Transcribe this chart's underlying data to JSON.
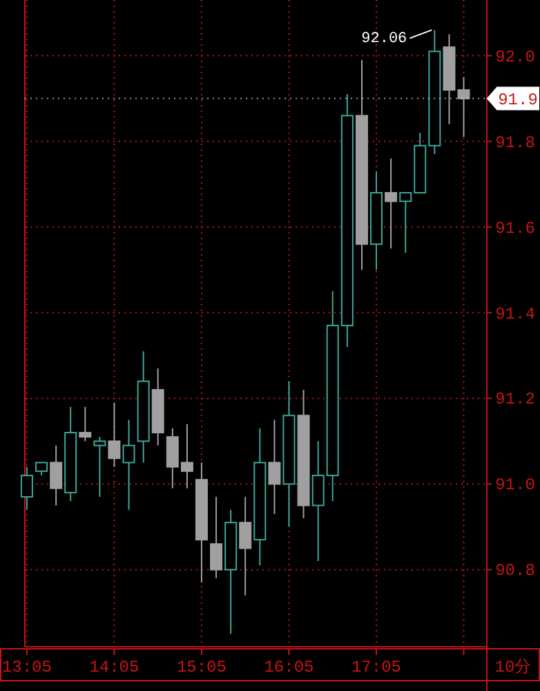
{
  "chart_data": {
    "type": "candlestick",
    "x": [
      13.083,
      13.25,
      13.417,
      13.583,
      13.75,
      13.917,
      14.083,
      14.25,
      14.417,
      14.583,
      14.75,
      14.917,
      15.083,
      15.25,
      15.417,
      15.583,
      15.75,
      15.917,
      16.083,
      16.25,
      16.417,
      16.583,
      16.75,
      16.917,
      17.083,
      17.25,
      17.417,
      17.583,
      17.75,
      17.917,
      18.083
    ],
    "ohlc": [
      [
        90.97,
        91.04,
        90.94,
        91.02
      ],
      [
        91.03,
        91.05,
        91.02,
        91.05
      ],
      [
        91.05,
        91.09,
        90.95,
        90.99
      ],
      [
        90.98,
        91.18,
        90.96,
        91.12
      ],
      [
        91.12,
        91.18,
        91.1,
        91.11
      ],
      [
        91.09,
        91.11,
        90.97,
        91.1
      ],
      [
        91.1,
        91.19,
        91.04,
        91.06
      ],
      [
        91.05,
        91.15,
        90.94,
        91.09
      ],
      [
        91.1,
        91.31,
        91.05,
        91.24
      ],
      [
        91.22,
        91.27,
        91.09,
        91.12
      ],
      [
        91.11,
        91.13,
        90.99,
        91.04
      ],
      [
        91.05,
        91.14,
        90.99,
        91.03
      ],
      [
        91.01,
        91.05,
        90.77,
        90.87
      ],
      [
        90.86,
        90.97,
        90.78,
        90.8
      ],
      [
        90.8,
        90.94,
        90.65,
        90.91
      ],
      [
        90.91,
        90.97,
        90.74,
        90.85
      ],
      [
        90.87,
        91.13,
        90.81,
        91.05
      ],
      [
        91.05,
        91.15,
        90.93,
        91.0
      ],
      [
        91.0,
        91.24,
        90.9,
        91.16
      ],
      [
        91.16,
        91.22,
        90.92,
        90.95
      ],
      [
        90.95,
        91.1,
        90.82,
        91.02
      ],
      [
        91.02,
        91.45,
        90.96,
        91.37
      ],
      [
        91.37,
        91.91,
        91.32,
        91.86
      ],
      [
        91.86,
        91.99,
        91.5,
        91.56
      ],
      [
        91.56,
        91.73,
        91.5,
        91.68
      ],
      [
        91.68,
        91.76,
        91.55,
        91.66
      ],
      [
        91.66,
        91.68,
        91.54,
        91.68
      ],
      [
        91.68,
        91.82,
        91.68,
        91.79
      ],
      [
        91.79,
        92.06,
        91.77,
        92.01
      ],
      [
        92.02,
        92.05,
        91.84,
        91.92
      ],
      [
        91.92,
        91.95,
        91.81,
        91.9
      ]
    ],
    "colors": [
      "#3aa89c",
      "#3aa89c",
      "#a0a0a0",
      "#3aa89c",
      "#a0a0a0",
      "#3aa89c",
      "#a0a0a0",
      "#3aa89c",
      "#3aa89c",
      "#a0a0a0",
      "#a0a0a0",
      "#a0a0a0",
      "#a0a0a0",
      "#a0a0a0",
      "#3aa89c",
      "#a0a0a0",
      "#3aa89c",
      "#a0a0a0",
      "#3aa89c",
      "#a0a0a0",
      "#3aa89c",
      "#3aa89c",
      "#3aa89c",
      "#a0a0a0",
      "#3aa89c",
      "#a0a0a0",
      "#3aa89c",
      "#3aa89c",
      "#3aa89c",
      "#a0a0a0",
      "#a0a0a0"
    ],
    "xlim": [
      13.06,
      18.34
    ],
    "xticks": [
      {
        "value": 13.083,
        "label": "13:05"
      },
      {
        "value": 14.083,
        "label": "14:05"
      },
      {
        "value": 15.083,
        "label": "15:05"
      },
      {
        "value": 16.083,
        "label": "16:05"
      },
      {
        "value": 17.083,
        "label": "17:05"
      },
      {
        "value": 18.083,
        "label": null
      }
    ],
    "ylim": [
      90.62,
      92.13
    ],
    "yticks": [
      {
        "value": 90.8,
        "label": "90.8"
      },
      {
        "value": 91.0,
        "label": "91.0"
      },
      {
        "value": 91.2,
        "label": "91.2"
      },
      {
        "value": 91.4,
        "label": "91.4"
      },
      {
        "value": 91.6,
        "label": "91.6"
      },
      {
        "value": 91.8,
        "label": "91.8"
      },
      {
        "value": 92.0,
        "label": "92.0"
      }
    ],
    "grid": true,
    "ref_lines": [
      {
        "axis": "y",
        "value": 91.9,
        "label": "91.9"
      }
    ],
    "annotations": [
      {
        "text": "92.06",
        "x": 17.75,
        "y": 92.06
      },
      "10分"
    ]
  }
}
